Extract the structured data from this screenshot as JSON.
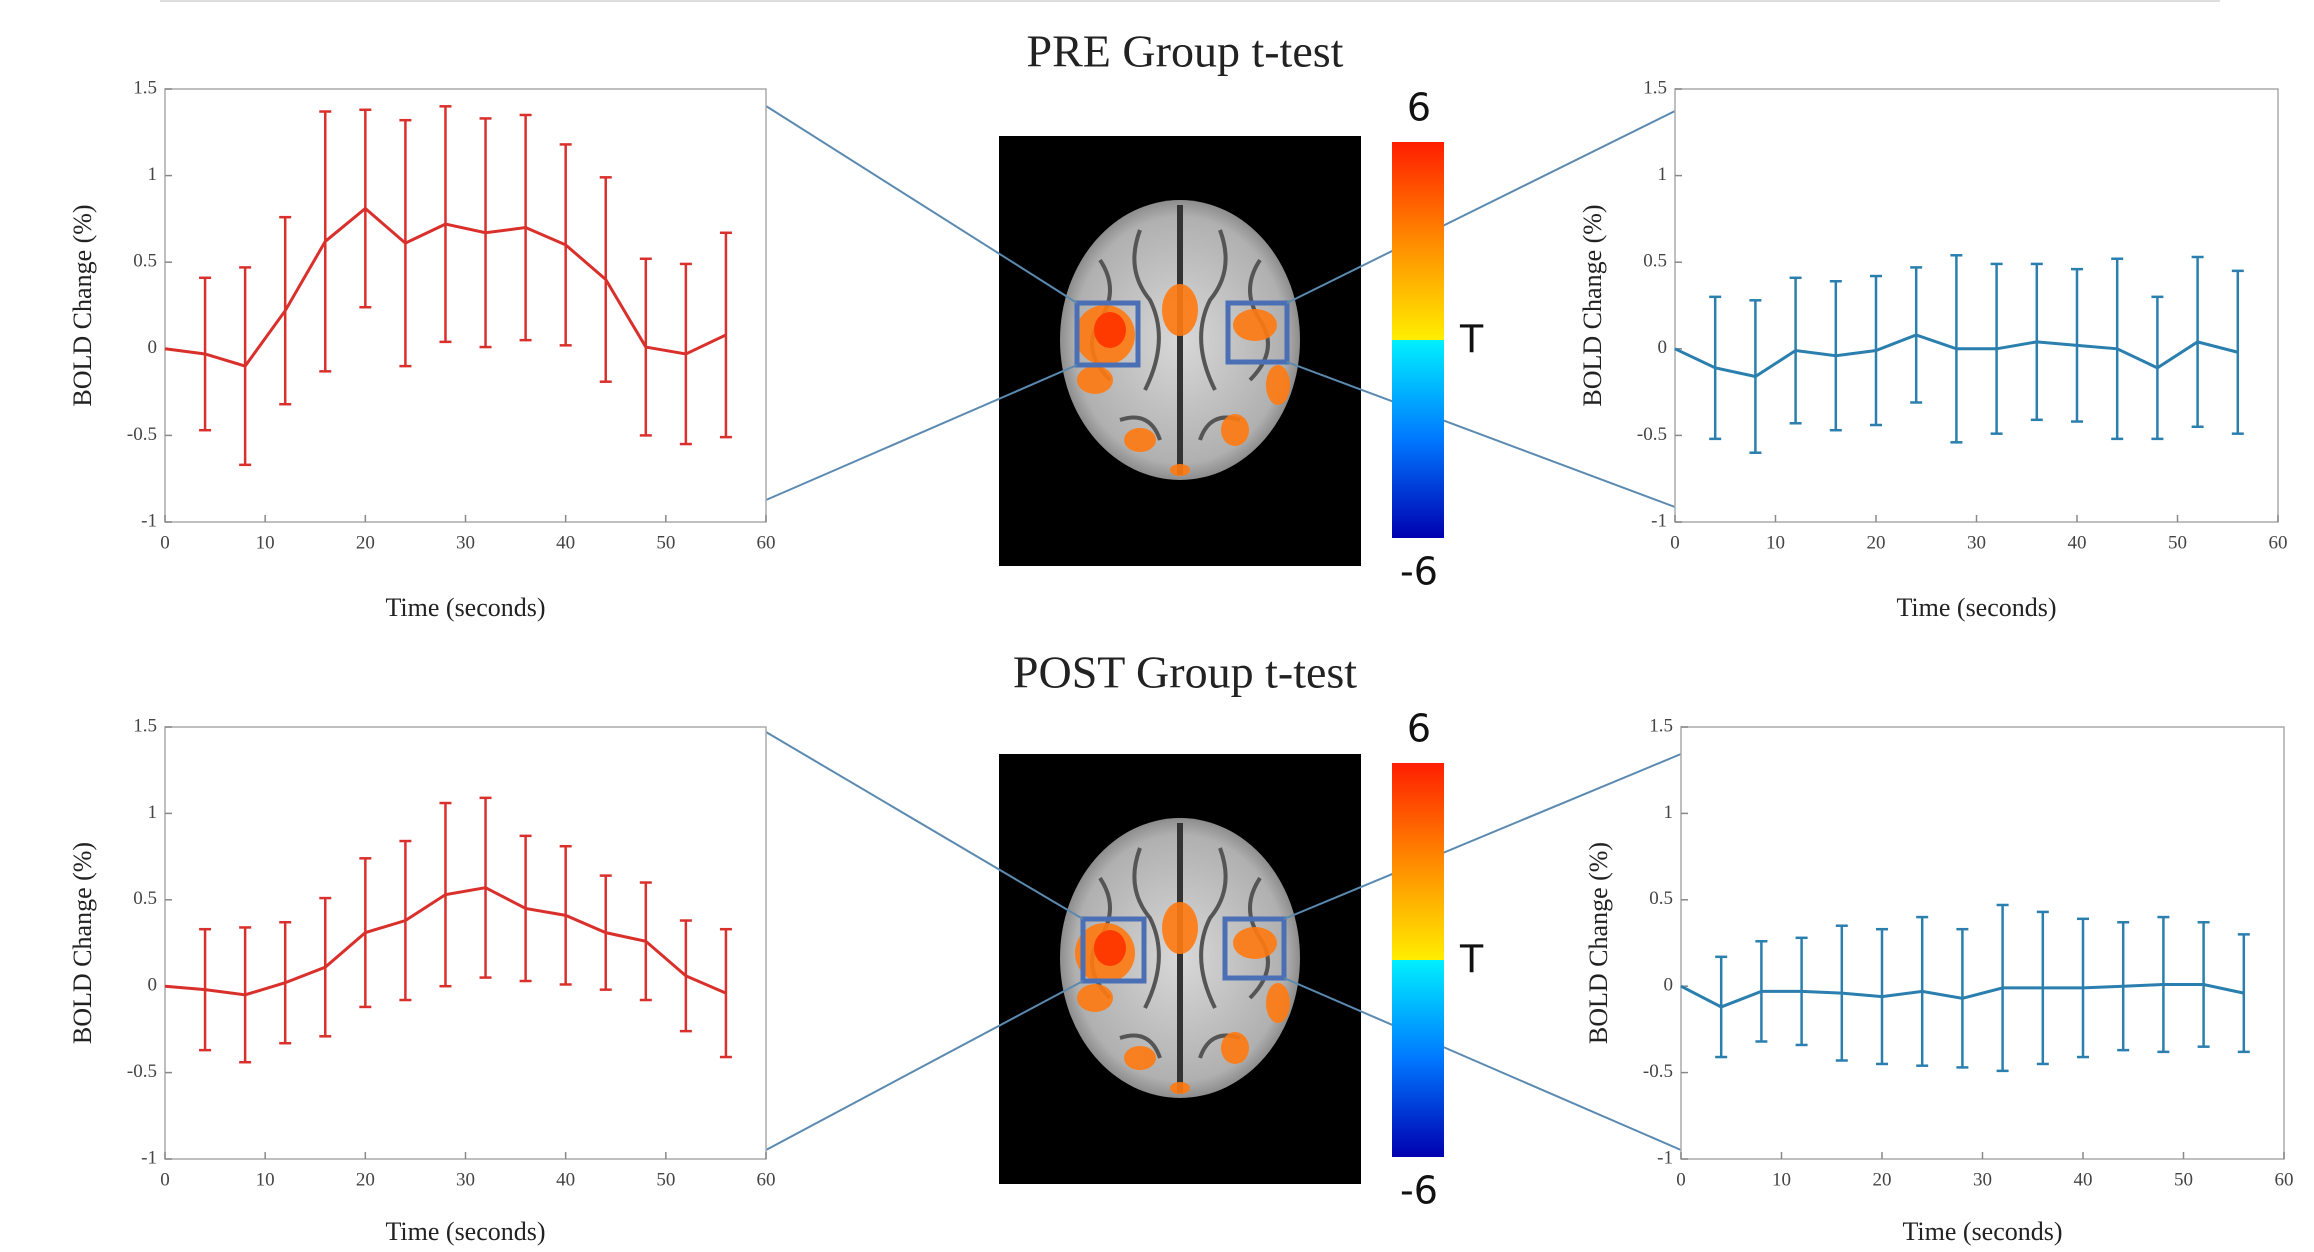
{
  "figure": {
    "panels": [
      {
        "title": "PRE Group t-test",
        "colorbar": {
          "ticks": [
            6,
            -6
          ],
          "label": "T"
        }
      },
      {
        "title": "POST Group t-test",
        "colorbar": {
          "ticks": [
            6,
            -6
          ],
          "label": "T"
        }
      }
    ]
  },
  "chart_data": [
    {
      "type": "line",
      "x": [
        0,
        4,
        8,
        12,
        16,
        20,
        24,
        28,
        32,
        36,
        40,
        44,
        48,
        52,
        56
      ],
      "xlim": [
        0,
        60
      ],
      "xticks": [
        0,
        10,
        20,
        30,
        40,
        50,
        60
      ],
      "ylim": [
        -1,
        1.5
      ],
      "yticks": [
        -1,
        -0.5,
        0,
        0.5,
        1,
        1.5
      ],
      "xlabel": "Time (seconds)",
      "ylabel": "BOLD Change (%)",
      "series": [
        {
          "color": "#d9302c",
          "values": [
            0,
            -0.03,
            -0.1,
            0.22,
            0.62,
            0.81,
            0.61,
            0.72,
            0.67,
            0.7,
            0.6,
            0.4,
            0.01,
            -0.03,
            0.08
          ],
          "errors": [
            null,
            0.44,
            0.57,
            0.54,
            0.75,
            0.57,
            0.71,
            0.68,
            0.66,
            0.65,
            0.58,
            0.59,
            0.51,
            0.52,
            0.59
          ]
        }
      ]
    },
    {
      "type": "line",
      "x": [
        0,
        4,
        8,
        12,
        16,
        20,
        24,
        28,
        32,
        36,
        40,
        44,
        48,
        52,
        56
      ],
      "xlim": [
        0,
        60
      ],
      "xticks": [
        0,
        10,
        20,
        30,
        40,
        50,
        60
      ],
      "ylim": [
        -1,
        1.5
      ],
      "yticks": [
        -1,
        -0.5,
        0,
        0.5,
        1,
        1.5
      ],
      "xlabel": "Time (seconds)",
      "ylabel": "BOLD Change (%)",
      "series": [
        {
          "color": "#2a7fae",
          "values": [
            0,
            -0.11,
            -0.16,
            -0.01,
            -0.04,
            -0.01,
            0.08,
            0,
            0,
            0.04,
            0.02,
            0,
            -0.11,
            0.04,
            -0.02
          ],
          "errors": [
            null,
            0.41,
            0.44,
            0.42,
            0.43,
            0.43,
            0.39,
            0.54,
            0.49,
            0.45,
            0.44,
            0.52,
            0.41,
            0.49,
            0.47
          ]
        }
      ]
    },
    {
      "type": "line",
      "x": [
        0,
        4,
        8,
        12,
        16,
        20,
        24,
        28,
        32,
        36,
        40,
        44,
        48,
        52,
        56
      ],
      "xlim": [
        0,
        60
      ],
      "xticks": [
        0,
        10,
        20,
        30,
        40,
        50,
        60
      ],
      "ylim": [
        -1,
        1.5
      ],
      "yticks": [
        -1,
        -0.5,
        0,
        0.5,
        1,
        1.5
      ],
      "xlabel": "Time (seconds)",
      "ylabel": "BOLD Change (%)",
      "series": [
        {
          "color": "#d9302c",
          "values": [
            0,
            -0.02,
            -0.05,
            0.02,
            0.11,
            0.31,
            0.38,
            0.53,
            0.57,
            0.45,
            0.41,
            0.31,
            0.26,
            0.06,
            -0.04
          ],
          "errors": [
            null,
            0.35,
            0.39,
            0.35,
            0.4,
            0.43,
            0.46,
            0.53,
            0.52,
            0.42,
            0.4,
            0.33,
            0.34,
            0.32,
            0.37
          ]
        }
      ]
    },
    {
      "type": "line",
      "x": [
        0,
        4,
        8,
        12,
        16,
        20,
        24,
        28,
        32,
        36,
        40,
        44,
        48,
        52,
        56
      ],
      "xlim": [
        0,
        60
      ],
      "xticks": [
        0,
        10,
        20,
        30,
        40,
        50,
        60
      ],
      "ylim": [
        -1,
        1.5
      ],
      "yticks": [
        -1,
        -0.5,
        0,
        0.5,
        1,
        1.5
      ],
      "xlabel": "Time (seconds)",
      "ylabel": "BOLD Change (%)",
      "series": [
        {
          "color": "#2a7fae",
          "values": [
            0,
            -0.12,
            -0.03,
            -0.03,
            -0.04,
            -0.06,
            -0.03,
            -0.07,
            -0.01,
            -0.01,
            -0.01,
            0,
            0.01,
            0.01,
            -0.04
          ],
          "errors": [
            null,
            0.29,
            0.29,
            0.31,
            0.39,
            0.39,
            0.43,
            0.4,
            0.48,
            0.44,
            0.4,
            0.37,
            0.39,
            0.36,
            0.34
          ]
        }
      ]
    }
  ]
}
